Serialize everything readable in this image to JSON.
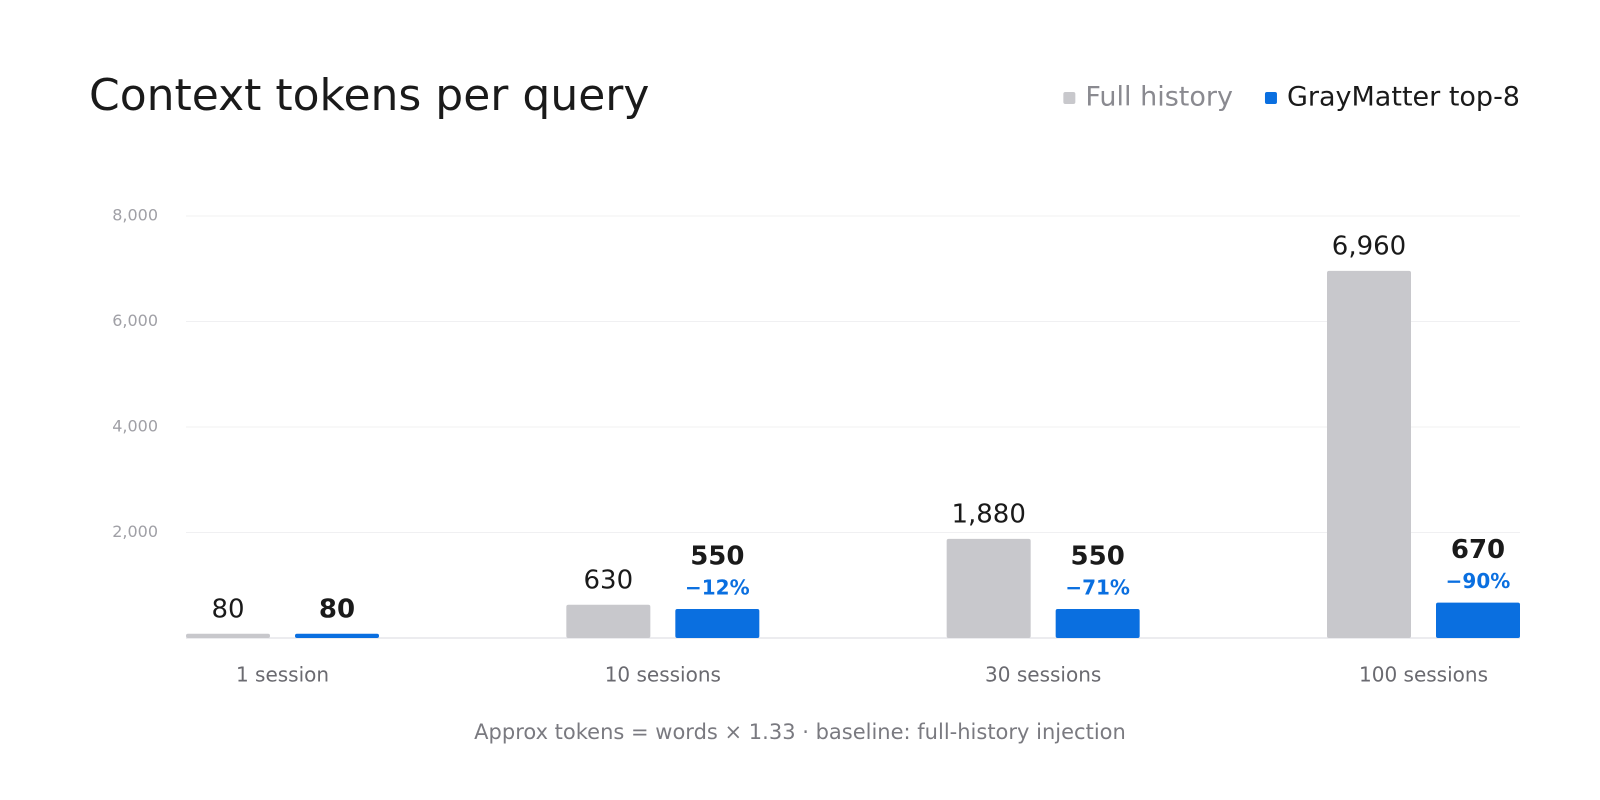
{
  "chart_data": {
    "type": "bar",
    "title": "Context tokens per query",
    "footnote": "Approx tokens = words × 1.33 · baseline: full-history injection",
    "categories": [
      "1 session",
      "10 sessions",
      "30 sessions",
      "100 sessions"
    ],
    "series": [
      {
        "name": "Full history",
        "color": "#c8c8cc",
        "values": [
          80,
          630,
          1880,
          6960
        ],
        "value_labels": [
          "80",
          "630",
          "1,880",
          "6,960"
        ]
      },
      {
        "name": "GrayMatter top-8",
        "color": "#0a6fe0",
        "values": [
          80,
          550,
          550,
          670
        ],
        "value_labels": [
          "80",
          "550",
          "550",
          "670"
        ],
        "change_labels": [
          null,
          "−12%",
          "−71%",
          "−90%"
        ]
      }
    ],
    "ylim": [
      0,
      8000
    ],
    "yticks": [
      {
        "value": 2000,
        "label": "2,000"
      },
      {
        "value": 4000,
        "label": "4,000"
      },
      {
        "value": 6000,
        "label": "6,000"
      },
      {
        "value": 8000,
        "label": "8,000"
      }
    ],
    "grid": true,
    "legend": "top-right"
  }
}
